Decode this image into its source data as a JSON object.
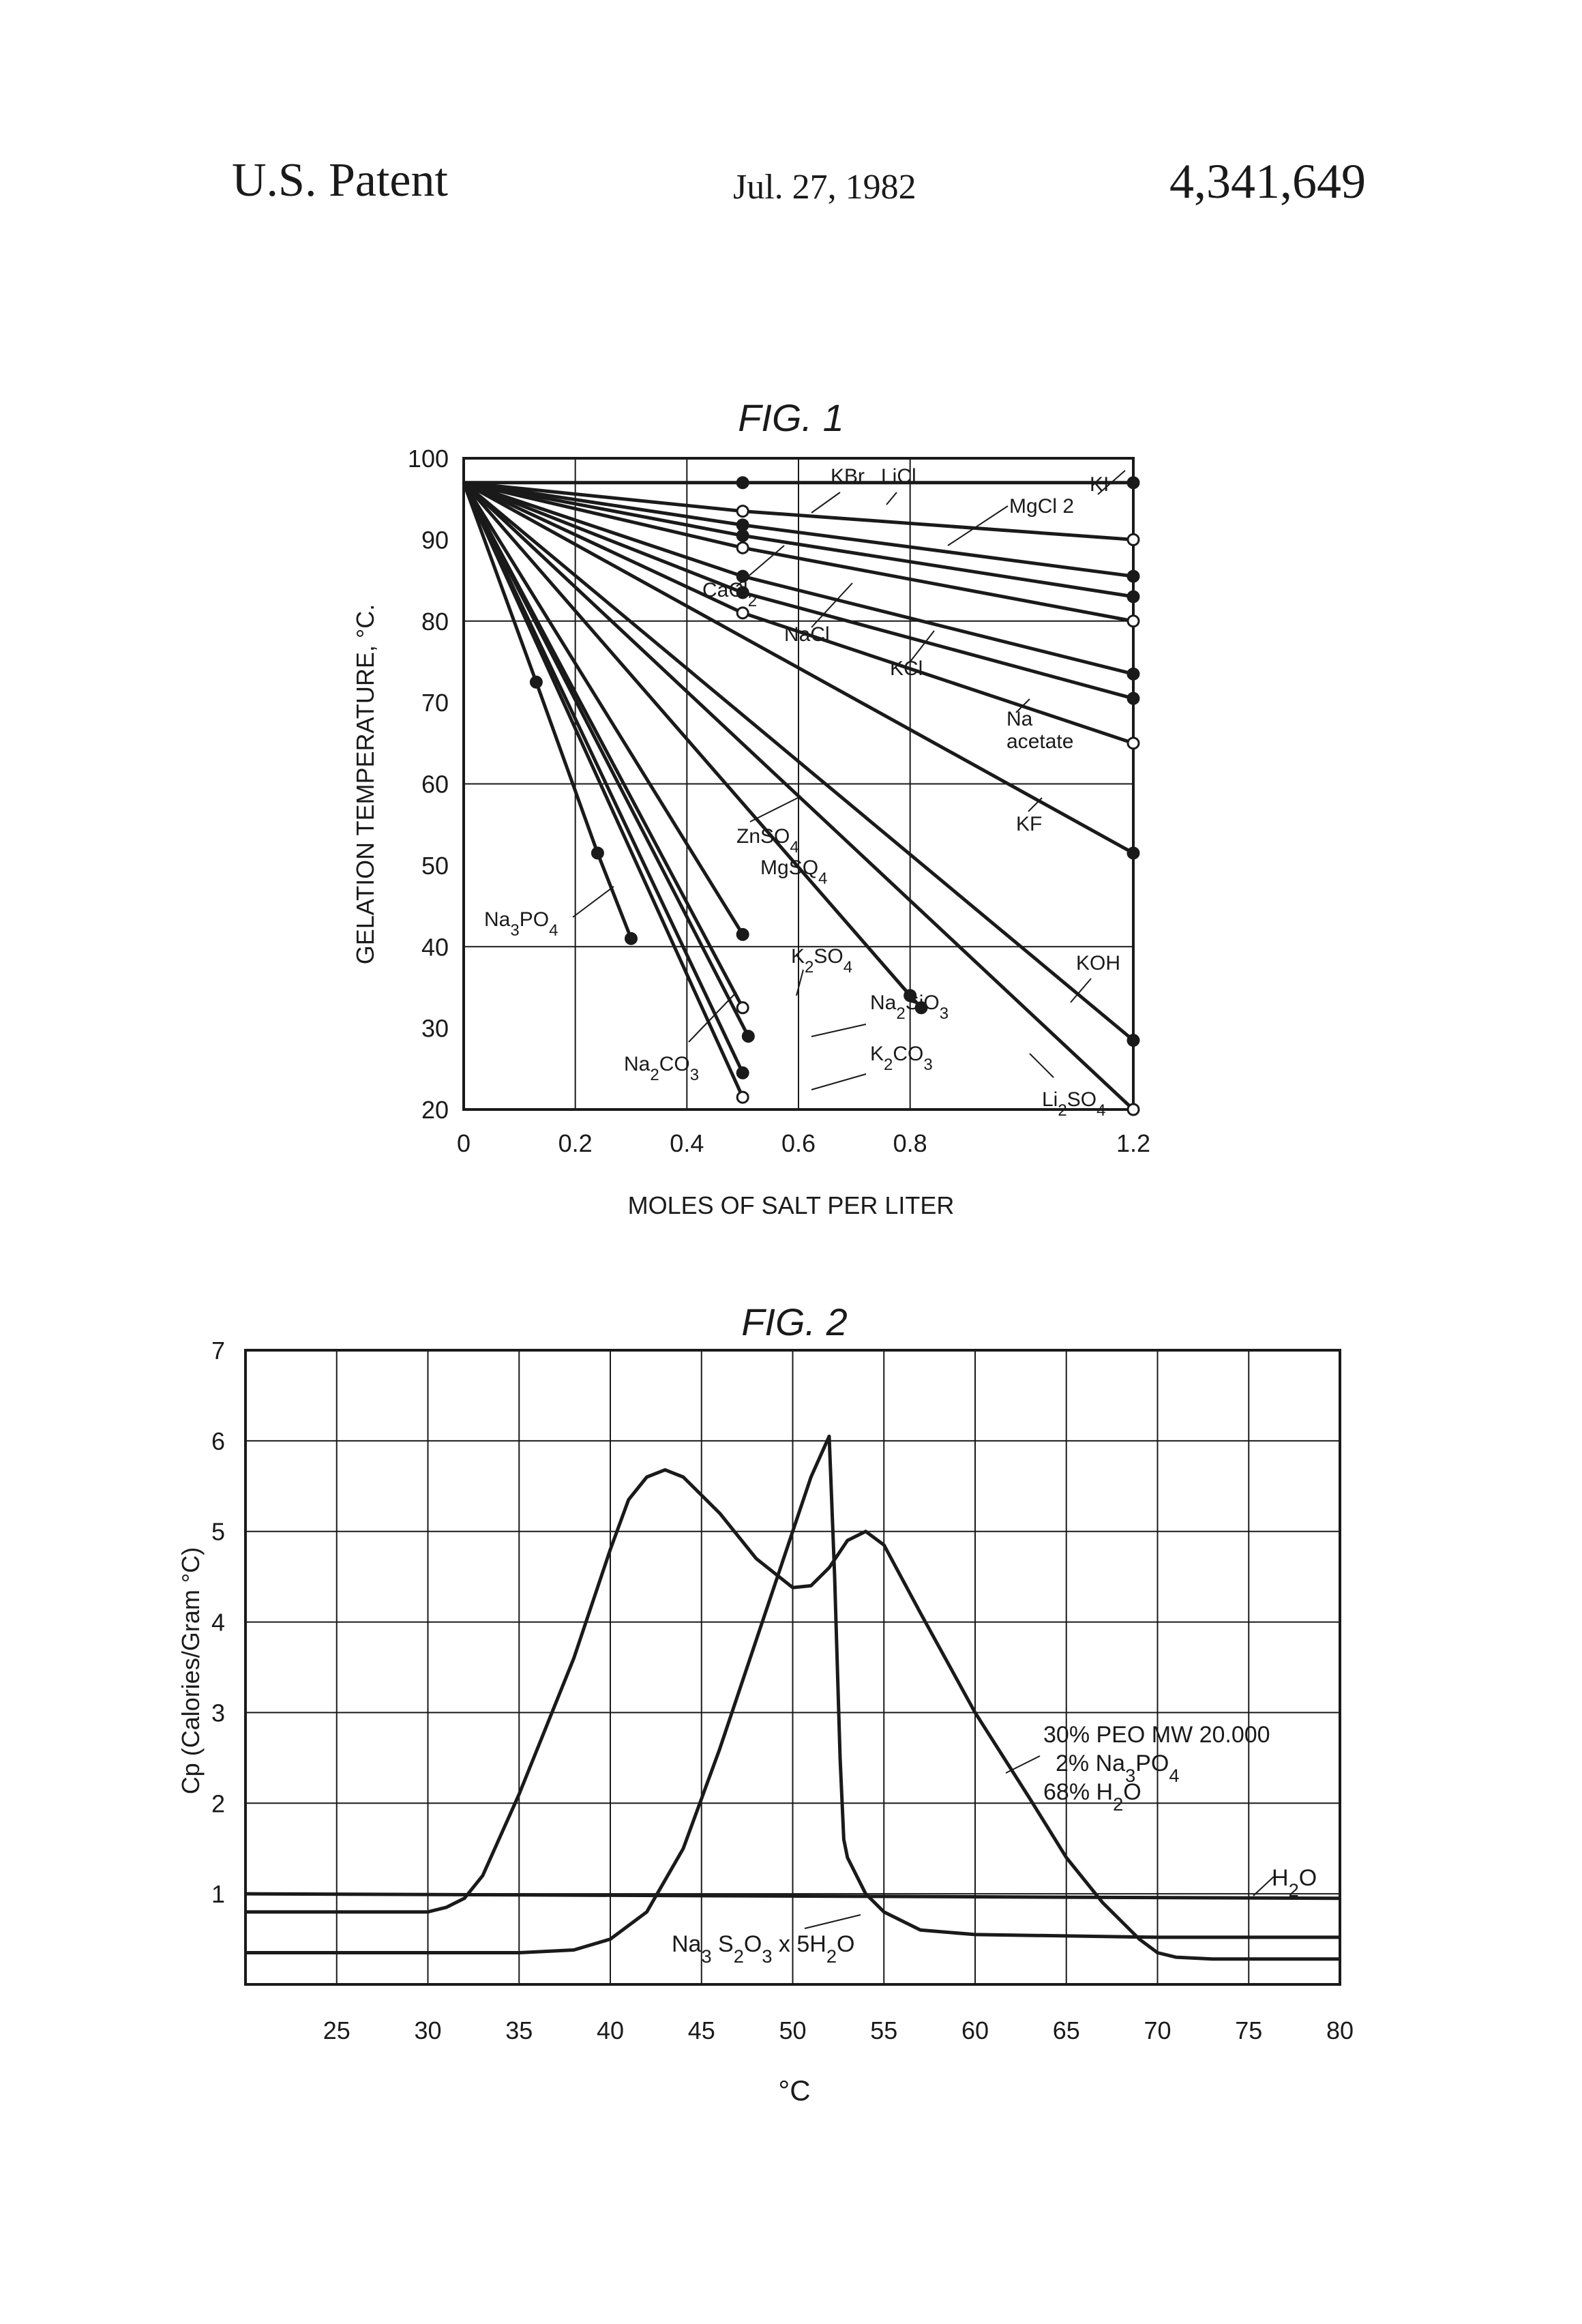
{
  "header": {
    "left": "U.S. Patent",
    "date": "Jul. 27, 1982",
    "number": "4,341,649"
  },
  "chart_data": [
    {
      "type": "line",
      "title": "FIG. 1",
      "xlabel": "MOLES OF SALT PER LITER",
      "ylabel": "GELATION TEMPERATURE, °C.",
      "xlim": [
        0,
        1.2
      ],
      "ylim": [
        20,
        100
      ],
      "x_ticks": [
        "0",
        "0.2",
        "0.4",
        "0.6",
        "0.8",
        "1.2"
      ],
      "x_tick_values": [
        0,
        0.2,
        0.4,
        0.6,
        0.8,
        1.2
      ],
      "y_ticks": [
        "20",
        "30",
        "40",
        "50",
        "60",
        "70",
        "80",
        "90",
        "100"
      ],
      "y_tick_values": [
        20,
        30,
        40,
        50,
        60,
        70,
        80,
        90,
        100
      ],
      "grid": true,
      "series": [
        {
          "name": "KI",
          "x": [
            0,
            0.5,
            1.2
          ],
          "y": [
            97,
            97,
            97
          ]
        },
        {
          "name": "KBr",
          "x": [
            0,
            0.5,
            1.2
          ],
          "y": [
            97,
            93.5,
            90
          ]
        },
        {
          "name": "LiCl",
          "x": [
            0,
            0.5,
            1.2
          ],
          "y": [
            97,
            91.8,
            85.5
          ]
        },
        {
          "name": "MgCl 2",
          "x": [
            0,
            0.5,
            1.2
          ],
          "y": [
            97,
            90.5,
            83
          ]
        },
        {
          "name": "CaCl2",
          "x": [
            0,
            0.5,
            1.2
          ],
          "y": [
            97,
            89,
            80
          ]
        },
        {
          "name": "NaCl",
          "x": [
            0,
            0.5,
            1.2
          ],
          "y": [
            97,
            85.5,
            73.5
          ]
        },
        {
          "name": "KCl",
          "x": [
            0,
            0.5,
            1.2
          ],
          "y": [
            97,
            83.5,
            70.5
          ]
        },
        {
          "name": "Na acetate",
          "x": [
            0,
            0.5,
            1.2
          ],
          "y": [
            97,
            81,
            65
          ]
        },
        {
          "name": "KF",
          "x": [
            0,
            1.2
          ],
          "y": [
            97,
            51.5
          ]
        },
        {
          "name": "KOH",
          "x": [
            0,
            1.2
          ],
          "y": [
            97,
            28.5
          ]
        },
        {
          "name": "Li2SO4",
          "x": [
            0,
            1.2
          ],
          "y": [
            97,
            20
          ]
        },
        {
          "name": "ZnSO4",
          "x": [
            0,
            0.8,
            0.82
          ],
          "y": [
            97,
            34,
            32.5
          ]
        },
        {
          "name": "MgSQ4",
          "x": [
            0,
            0.5
          ],
          "y": [
            97,
            41.5
          ]
        },
        {
          "name": "K2SO4",
          "x": [
            0,
            0.5
          ],
          "y": [
            97,
            32.5
          ]
        },
        {
          "name": "Na2SiO3",
          "x": [
            0,
            0.51
          ],
          "y": [
            97,
            29
          ]
        },
        {
          "name": "K2CO3",
          "x": [
            0,
            0.5
          ],
          "y": [
            97,
            24.5
          ]
        },
        {
          "name": "Na2CO3",
          "x": [
            0,
            0.5
          ],
          "y": [
            97,
            21.5
          ]
        },
        {
          "name": "Na3PO4",
          "x": [
            0,
            0.13,
            0.24,
            0.3
          ],
          "y": [
            97,
            72.5,
            51.5,
            41
          ]
        }
      ],
      "labels": {
        "KI": "KI",
        "KBr": "KBr",
        "LiCl": "LiCl",
        "MgCl2": "MgCl 2",
        "CaCl2": "CaCl2",
        "NaCl": "NaCl",
        "KCl": "KCl",
        "Na": "Na",
        "acetate": "acetate",
        "KF": "KF",
        "KOH": "KOH",
        "Li2SO4": "Li2SO4",
        "ZnSO4": "ZnSO4",
        "MgSQ4": "MgSQ4",
        "K2SO4": "K2SO4",
        "Na2SiO3": "Na2SiO3",
        "K2CO3": "K2CO3",
        "Na2CO3": "Na2CO3",
        "Na3PO4": "Na3PO4"
      }
    },
    {
      "type": "line",
      "title": "FIG. 2",
      "xlabel": "°C",
      "ylabel": "Cp (Calories/Gram °C)",
      "xlim": [
        20,
        80
      ],
      "ylim": [
        0,
        7
      ],
      "x_ticks": [
        "25",
        "30",
        "35",
        "40",
        "45",
        "50",
        "55",
        "60",
        "65",
        "70",
        "75",
        "80"
      ],
      "x_tick_values": [
        25,
        30,
        35,
        40,
        45,
        50,
        55,
        60,
        65,
        70,
        75,
        80
      ],
      "y_ticks": [
        "1",
        "2",
        "3",
        "4",
        "5",
        "6",
        "7"
      ],
      "y_tick_values": [
        1,
        2,
        3,
        4,
        5,
        6,
        7
      ],
      "grid": true,
      "series": [
        {
          "name": "30% PEO MW 20.000 2% Na3PO4 68% H2O",
          "x": [
            20,
            26,
            30,
            31,
            32,
            33,
            35,
            38,
            40,
            41,
            42,
            43,
            44,
            46,
            48,
            50,
            51,
            52,
            53,
            54,
            55,
            57,
            60,
            63,
            65,
            67,
            69,
            70,
            71,
            73,
            76,
            80
          ],
          "y": [
            0.8,
            0.8,
            0.8,
            0.85,
            0.95,
            1.2,
            2.1,
            3.6,
            4.8,
            5.35,
            5.6,
            5.68,
            5.6,
            5.2,
            4.7,
            4.38,
            4.4,
            4.6,
            4.9,
            5.0,
            4.85,
            4.1,
            3.0,
            2.05,
            1.4,
            0.9,
            0.5,
            0.35,
            0.3,
            0.28,
            0.28,
            0.28
          ]
        },
        {
          "name": "Na3S2O3 x 5H2O",
          "x": [
            20,
            30,
            35,
            38,
            40,
            42,
            44,
            46,
            48,
            50,
            51,
            52,
            52.3,
            52.6,
            52.8,
            53,
            54,
            55,
            57,
            60,
            70,
            80
          ],
          "y": [
            0.35,
            0.35,
            0.35,
            0.38,
            0.5,
            0.8,
            1.5,
            2.6,
            3.8,
            5.0,
            5.6,
            6.05,
            4.5,
            2.5,
            1.6,
            1.4,
            1.0,
            0.8,
            0.6,
            0.55,
            0.52,
            0.52
          ]
        },
        {
          "name": "H2O",
          "x": [
            20,
            80
          ],
          "y": [
            1.0,
            0.95
          ]
        }
      ],
      "labels": {
        "legend1": "30% PEO MW 20.000",
        "legend2": "2% Na3PO4",
        "legend3": "68% H2O",
        "h2o": "H2O",
        "na3s2o3": "Na3 S2O3 x 5H2O"
      }
    }
  ]
}
